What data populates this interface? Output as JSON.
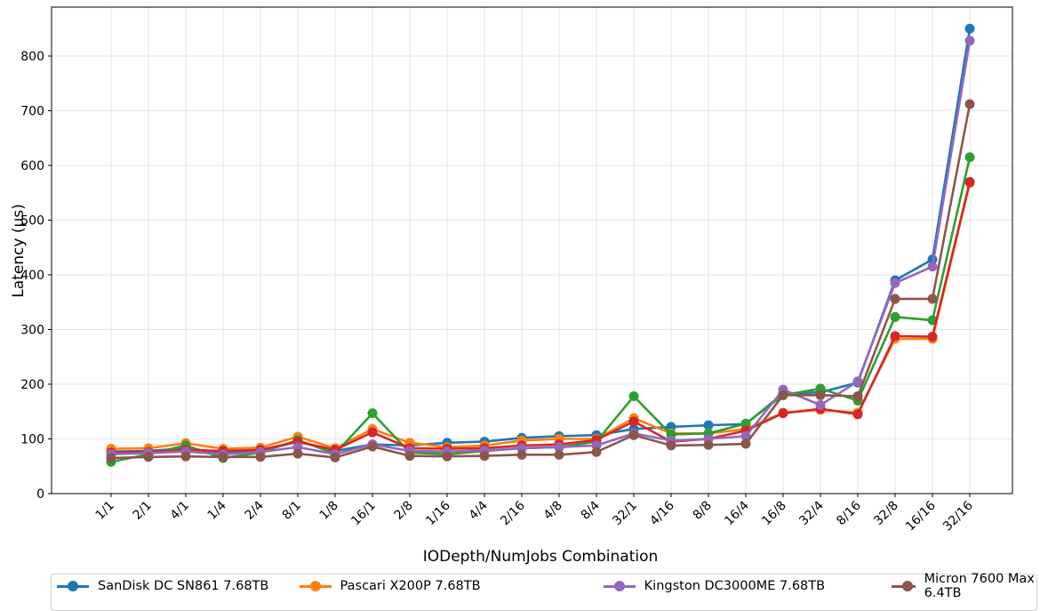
{
  "chart_data": {
    "type": "line",
    "title": "",
    "xlabel": "IODepth/NumJobs Combination",
    "ylabel": "Latency (µs)",
    "ylim": [
      0,
      850
    ],
    "yticks": [
      0,
      100,
      200,
      300,
      400,
      500,
      600,
      700,
      800
    ],
    "grid": true,
    "legend_placement": "bottom",
    "categories": [
      "1/1",
      "2/1",
      "4/1",
      "1/4",
      "2/4",
      "8/1",
      "1/8",
      "16/1",
      "2/8",
      "1/16",
      "4/4",
      "2/16",
      "4/8",
      "8/4",
      "32/1",
      "4/16",
      "8/8",
      "16/4",
      "16/8",
      "32/4",
      "8/16",
      "32/8",
      "16/16",
      "32/16"
    ],
    "series": [
      {
        "name": "SanDisk DC SN861 7.68TB",
        "color": "#1f77b4",
        "values": [
          77,
          78,
          83,
          75,
          78,
          95,
          78,
          90,
          88,
          93,
          95,
          102,
          105,
          107,
          118,
          122,
          125,
          127,
          183,
          185,
          203,
          390,
          428,
          850
        ]
      },
      {
        "name": "Pascari X200P 7.68TB",
        "color": "#ff7f0e",
        "values": [
          82,
          83,
          92,
          82,
          84,
          104,
          83,
          118,
          93,
          85,
          88,
          97,
          100,
          100,
          138,
          110,
          110,
          118,
          148,
          153,
          148,
          283,
          283,
          568
        ]
      },
      {
        "name": "",
        "color": "#2ca02c",
        "values": [
          58,
          72,
          88,
          65,
          75,
          98,
          73,
          147,
          75,
          72,
          78,
          83,
          85,
          95,
          178,
          108,
          110,
          128,
          180,
          192,
          170,
          323,
          317,
          615
        ]
      },
      {
        "name": "",
        "color": "#d62728",
        "values": [
          75,
          76,
          80,
          78,
          80,
          95,
          80,
          112,
          83,
          82,
          83,
          88,
          90,
          98,
          132,
          95,
          100,
          115,
          147,
          155,
          145,
          288,
          287,
          570
        ]
      },
      {
        "name": "Kingston DC3000ME 7.68TB",
        "color": "#9467bd",
        "values": [
          72,
          74,
          77,
          72,
          76,
          85,
          72,
          90,
          78,
          77,
          79,
          83,
          85,
          88,
          110,
          97,
          100,
          105,
          190,
          162,
          205,
          385,
          415,
          828
        ]
      },
      {
        "name": "Micron 7600 Max 6.4TB",
        "color": "#8c564b",
        "values": [
          65,
          67,
          68,
          67,
          67,
          73,
          66,
          86,
          69,
          68,
          69,
          71,
          71,
          76,
          107,
          88,
          89,
          91,
          180,
          180,
          178,
          356,
          356,
          712
        ]
      }
    ]
  }
}
